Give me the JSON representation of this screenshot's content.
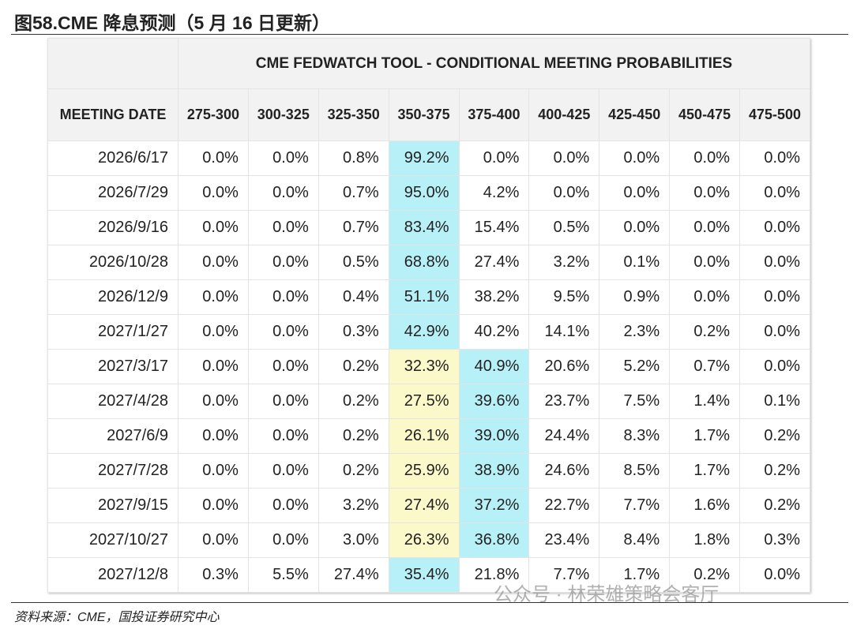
{
  "header": {
    "title": "图58.CME 降息预测（5 月 16 日更新）"
  },
  "table": {
    "title": "CME FEDWATCH TOOL - CONDITIONAL MEETING PROBABILITIES",
    "columns": [
      "MEETING DATE",
      "275-300",
      "300-325",
      "325-350",
      "350-375",
      "375-400",
      "400-425",
      "425-450",
      "450-475",
      "475-500"
    ],
    "rows": [
      [
        "2026/6/17",
        "0.0%",
        "0.0%",
        "0.8%",
        "99.2%",
        "0.0%",
        "0.0%",
        "0.0%",
        "0.0%",
        "0.0%"
      ],
      [
        "2026/7/29",
        "0.0%",
        "0.0%",
        "0.7%",
        "95.0%",
        "4.2%",
        "0.0%",
        "0.0%",
        "0.0%",
        "0.0%"
      ],
      [
        "2026/9/16",
        "0.0%",
        "0.0%",
        "0.7%",
        "83.4%",
        "15.4%",
        "0.5%",
        "0.0%",
        "0.0%",
        "0.0%"
      ],
      [
        "2026/10/28",
        "0.0%",
        "0.0%",
        "0.5%",
        "68.8%",
        "27.4%",
        "3.2%",
        "0.1%",
        "0.0%",
        "0.0%"
      ],
      [
        "2026/12/9",
        "0.0%",
        "0.0%",
        "0.4%",
        "51.1%",
        "38.2%",
        "9.5%",
        "0.9%",
        "0.0%",
        "0.0%"
      ],
      [
        "2027/1/27",
        "0.0%",
        "0.0%",
        "0.3%",
        "42.9%",
        "40.2%",
        "14.1%",
        "2.3%",
        "0.2%",
        "0.0%"
      ],
      [
        "2027/3/17",
        "0.0%",
        "0.0%",
        "0.2%",
        "32.3%",
        "40.9%",
        "20.6%",
        "5.2%",
        "0.7%",
        "0.0%"
      ],
      [
        "2027/4/28",
        "0.0%",
        "0.0%",
        "0.2%",
        "27.5%",
        "39.6%",
        "23.7%",
        "7.5%",
        "1.4%",
        "0.1%"
      ],
      [
        "2027/6/9",
        "0.0%",
        "0.0%",
        "0.2%",
        "26.1%",
        "39.0%",
        "24.4%",
        "8.3%",
        "1.7%",
        "0.2%"
      ],
      [
        "2027/7/28",
        "0.0%",
        "0.0%",
        "0.2%",
        "25.9%",
        "38.9%",
        "24.6%",
        "8.5%",
        "1.7%",
        "0.2%"
      ],
      [
        "2027/9/15",
        "0.0%",
        "0.0%",
        "3.2%",
        "27.4%",
        "37.2%",
        "22.7%",
        "7.7%",
        "1.6%",
        "0.2%"
      ],
      [
        "2027/10/27",
        "0.0%",
        "0.0%",
        "3.0%",
        "26.3%",
        "36.8%",
        "23.4%",
        "8.4%",
        "1.8%",
        "0.3%"
      ],
      [
        "2027/12/8",
        "0.3%",
        "5.5%",
        "27.4%",
        "35.4%",
        "21.8%",
        "7.7%",
        "1.7%",
        "0.2%",
        "0.0%"
      ]
    ]
  },
  "watermark": "公众号 · 林荣雄策略会客厅",
  "footer": {
    "source": "资料来源：CME，国投证券研究中心"
  }
}
